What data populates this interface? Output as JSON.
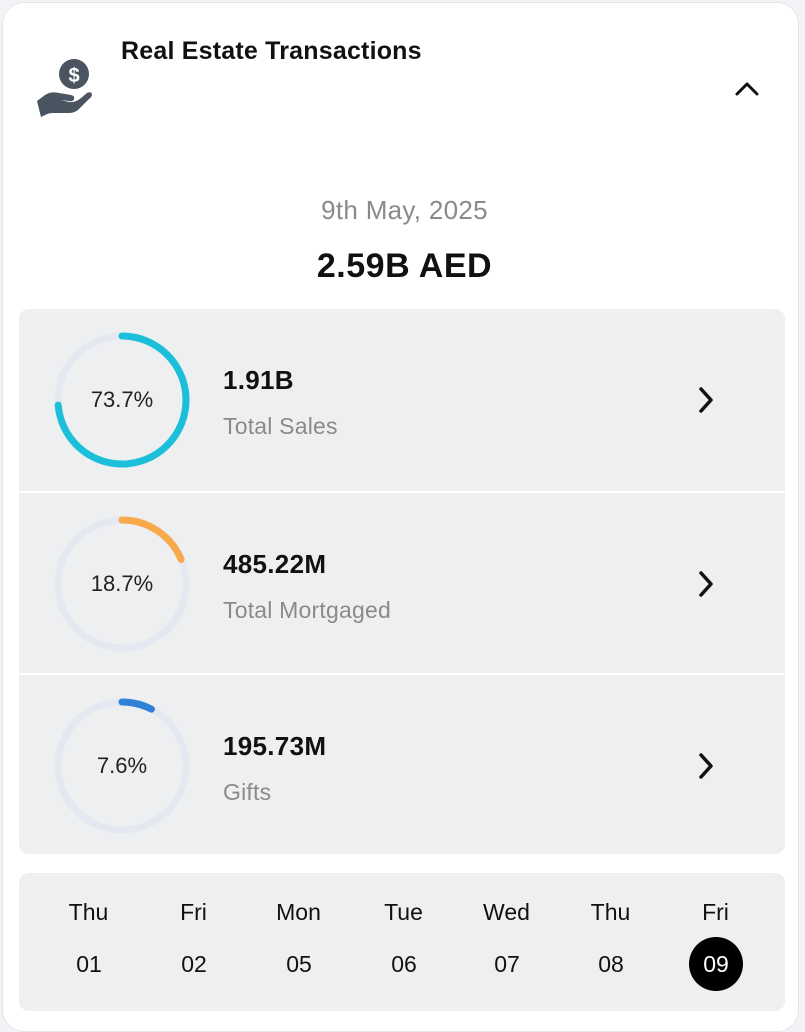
{
  "header": {
    "title": "Real Estate Transactions",
    "icon": "hand-holding-dollar-icon",
    "collapse_icon": "chevron-up-icon"
  },
  "summary": {
    "date": "9th May, 2025",
    "total": "2.59B AED"
  },
  "breakdown": [
    {
      "percent_label": "73.7%",
      "percent": 73.7,
      "value": "1.91B",
      "name": "Total Sales",
      "color": "#1cbfd9"
    },
    {
      "percent_label": "18.7%",
      "percent": 18.7,
      "value": "485.22M",
      "name": "Total Mortgaged",
      "color": "#f7a94c"
    },
    {
      "percent_label": "7.6%",
      "percent": 7.6,
      "value": "195.73M",
      "name": "Gifts",
      "color": "#2f80d6"
    }
  ],
  "days": [
    {
      "name": "Thu",
      "num": "01"
    },
    {
      "name": "Fri",
      "num": "02"
    },
    {
      "name": "Mon",
      "num": "05"
    },
    {
      "name": "Tue",
      "num": "06"
    },
    {
      "name": "Wed",
      "num": "07"
    },
    {
      "name": "Thu",
      "num": "08"
    },
    {
      "name": "Fri",
      "num": "09"
    }
  ],
  "selected_day": "09",
  "colors": {
    "ring_track": "#e3e8f1",
    "selected_day_bg": "#000000"
  }
}
